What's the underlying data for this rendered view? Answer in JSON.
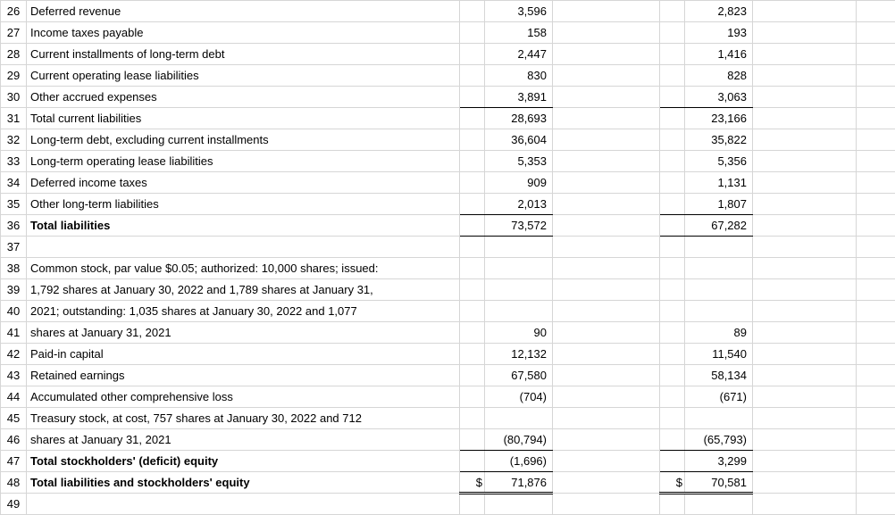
{
  "rows": [
    {
      "n": 26,
      "label": "Deferred revenue",
      "v1": "3,596",
      "v2": "2,823"
    },
    {
      "n": 27,
      "label": "Income taxes payable",
      "v1": "158",
      "v2": "193"
    },
    {
      "n": 28,
      "label": "Current installments of long-term debt",
      "v1": "2,447",
      "v2": "1,416"
    },
    {
      "n": 29,
      "label": "Current operating lease liabilities",
      "v1": "830",
      "v2": "828"
    },
    {
      "n": 30,
      "label": "Other accrued expenses",
      "v1": "3,891",
      "v2": "3,063",
      "v1bb": true,
      "v2bb": true
    },
    {
      "n": 31,
      "label": "Total current liabilities",
      "v1": "28,693",
      "v2": "23,166"
    },
    {
      "n": 32,
      "label": "Long-term debt, excluding current installments",
      "v1": "36,604",
      "v2": "35,822"
    },
    {
      "n": 33,
      "label": "Long-term operating lease liabilities",
      "v1": "5,353",
      "v2": "5,356"
    },
    {
      "n": 34,
      "label": "Deferred income taxes",
      "v1": "909",
      "v2": "1,131"
    },
    {
      "n": 35,
      "label": "Other long-term liabilities",
      "v1": "2,013",
      "v2": "1,807",
      "v1bb": true,
      "v2bb": true
    },
    {
      "n": 36,
      "label": "Total liabilities",
      "bold": true,
      "v1": "73,572",
      "v2": "67,282",
      "v1bb": true,
      "v2bb": true
    },
    {
      "n": 37,
      "label": ""
    },
    {
      "n": 38,
      "label": "Common stock, par value $0.05; authorized: 10,000 shares; issued:"
    },
    {
      "n": 39,
      "label": "1,792 shares at January 30, 2022 and 1,789 shares at January 31,"
    },
    {
      "n": 40,
      "label": "2021; outstanding: 1,035 shares at January 30, 2022 and 1,077"
    },
    {
      "n": 41,
      "label": "shares at January 31, 2021",
      "v1": "90",
      "v2": "89"
    },
    {
      "n": 42,
      "label": "Paid-in capital",
      "v1": "12,132",
      "v2": "11,540"
    },
    {
      "n": 43,
      "label": "Retained earnings",
      "v1": "67,580",
      "v2": "58,134"
    },
    {
      "n": 44,
      "label": "Accumulated other comprehensive loss",
      "v1": "(704)",
      "v2": "(671)"
    },
    {
      "n": 45,
      "label": "Treasury stock, at cost, 757 shares at January 30, 2022 and 712"
    },
    {
      "n": 46,
      "label": "shares at January 31, 2021",
      "v1": "(80,794)",
      "v2": "(65,793)",
      "v1bb": true,
      "v2bb": true
    },
    {
      "n": 47,
      "label": "Total stockholders' (deficit) equity",
      "bold": true,
      "v1": "(1,696)",
      "v2": "3,299",
      "v1bb": true,
      "v2bb": true
    },
    {
      "n": 48,
      "label": "Total liabilities and stockholders' equity",
      "bold": true,
      "s1": "$",
      "v1": "71,876",
      "s2": "$",
      "v2": "70,581",
      "dbl": true
    },
    {
      "n": 49,
      "label": ""
    }
  ]
}
